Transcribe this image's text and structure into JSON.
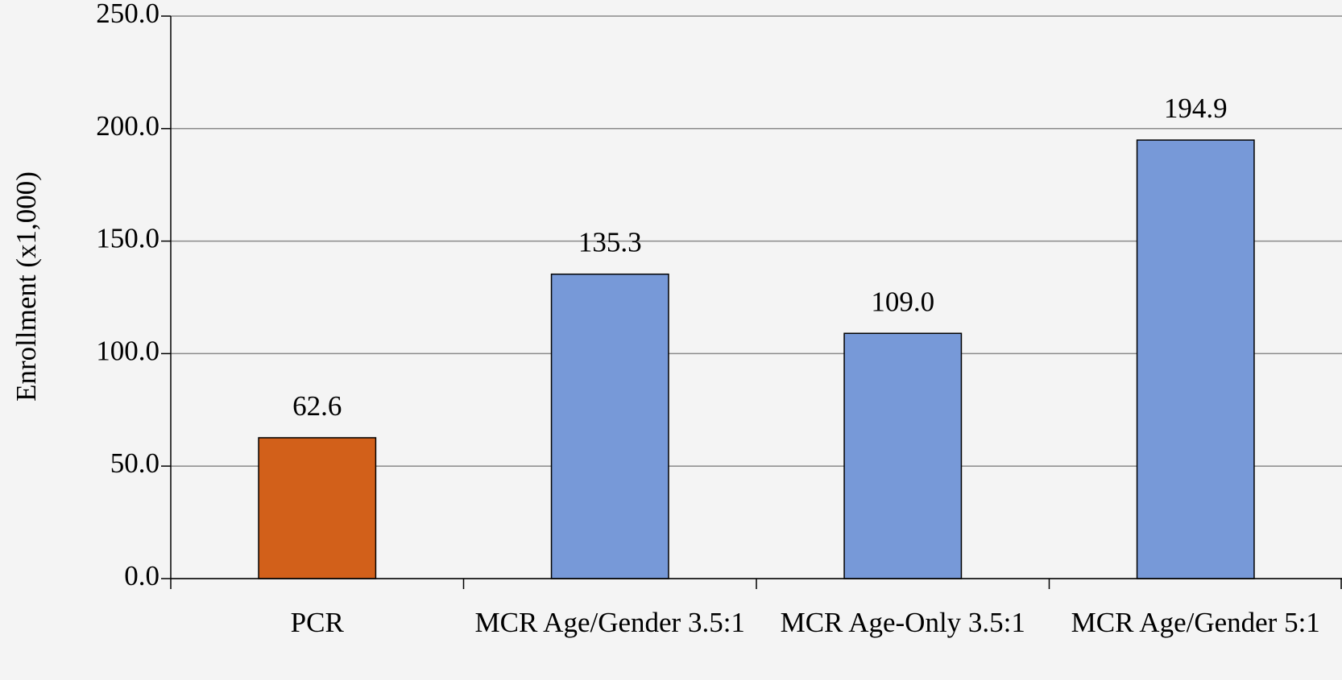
{
  "chart_data": {
    "type": "bar",
    "y_label": "Enrollment (x1,000)",
    "categories": [
      "PCR",
      "MCR Age/Gender 3.5:1",
      "MCR Age-Only 3.5:1",
      "MCR Age/Gender 5:1"
    ],
    "values": [
      62.6,
      135.3,
      109.0,
      194.9
    ],
    "value_labels": [
      "62.6",
      "135.3",
      "109.0",
      "194.9"
    ],
    "colors": [
      "#d2601a",
      "#7799d8",
      "#7799d8",
      "#7799d8"
    ],
    "ylim": [
      0,
      250
    ],
    "yticks": [
      {
        "value": 0,
        "label": "0.0"
      },
      {
        "value": 50,
        "label": "50.0"
      },
      {
        "value": 100,
        "label": "100.0"
      },
      {
        "value": 150,
        "label": "150.0"
      },
      {
        "value": 200,
        "label": "200.0"
      },
      {
        "value": 250,
        "label": "250.0"
      }
    ],
    "grid": true
  }
}
